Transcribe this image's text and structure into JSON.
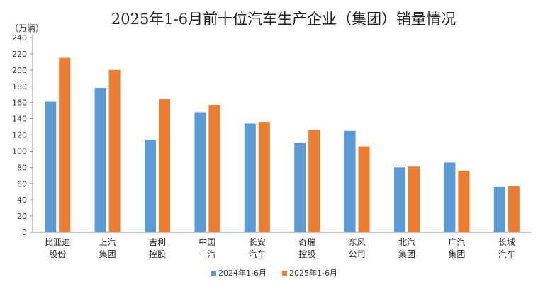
{
  "chart_data": {
    "type": "bar",
    "title": "2025年1-6月前十位汽车生产企业（集团）销量情况",
    "unit_label": "（万辆）",
    "xlabel": "",
    "ylabel": "万辆",
    "ylim": [
      0,
      240
    ],
    "yticks": [
      0,
      20,
      40,
      60,
      80,
      100,
      120,
      140,
      160,
      180,
      200,
      220,
      240
    ],
    "categories": [
      [
        "比亚迪",
        "股份"
      ],
      [
        "上汽",
        "集团"
      ],
      [
        "吉利",
        "控股"
      ],
      [
        "中国",
        "一汽"
      ],
      [
        "长安",
        "汽车"
      ],
      [
        "奇瑞",
        "控股"
      ],
      [
        "东风",
        "公司"
      ],
      [
        "北汽",
        "集团"
      ],
      [
        "广汽",
        "集团"
      ],
      [
        "长城",
        "汽车"
      ]
    ],
    "series": [
      {
        "name": "2024年1-6月",
        "color": "#5B9BD5",
        "values": [
          161,
          178,
          114,
          148,
          134,
          110,
          125,
          80,
          86,
          56
        ]
      },
      {
        "name": "2025年1-6月",
        "color": "#ED7D31",
        "values": [
          215,
          200,
          164,
          157,
          136,
          126,
          106,
          81,
          76,
          57
        ]
      }
    ],
    "legend_position": "bottom",
    "grid": false
  }
}
